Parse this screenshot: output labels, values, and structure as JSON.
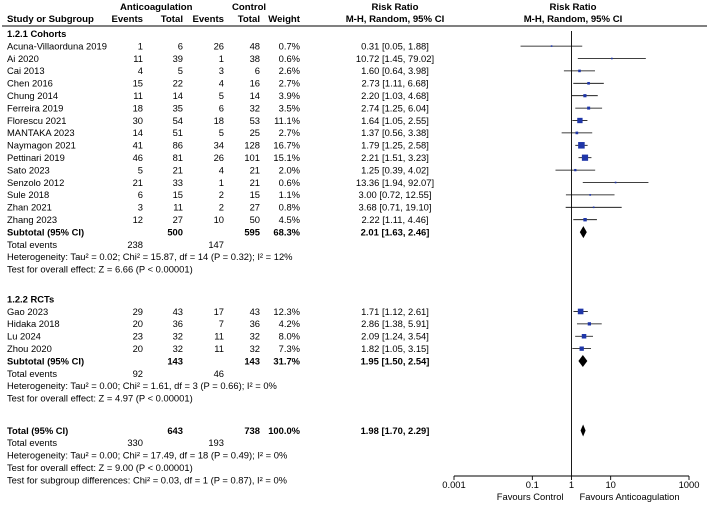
{
  "chart_data": {
    "type": "forest",
    "headers": {
      "study": "Study or Subgroup",
      "group1": "Anticoagulation",
      "group2": "Control",
      "events": "Events",
      "total": "Total",
      "weight": "Weight",
      "rr_title": "Risk Ratio",
      "rr_method": "M-H, Random, 95% CI",
      "plot_title": "Risk Ratio",
      "plot_method": "M-H, Random, 95% CI"
    },
    "axis": {
      "scale": "log",
      "ticks": [
        0.001,
        0.1,
        1,
        10,
        1000
      ],
      "tick_labels": [
        "0.001",
        "0.1",
        "1",
        "10",
        "1000"
      ],
      "range": [
        0.001,
        1000
      ],
      "favours_left": "Favours Control",
      "favours_right": "Favours Anticoagulation"
    },
    "subgroups": [
      {
        "title": "1.2.1 Cohorts",
        "studies": [
          {
            "name": "Acuna-Villaorduna 2019",
            "e1": "1",
            "t1": "6",
            "e2": "26",
            "t2": "48",
            "weight": "0.7%",
            "ci_text": "0.31 [0.05, 1.88]",
            "rr": 0.31,
            "lo": 0.05,
            "hi": 1.88,
            "w": 0.7
          },
          {
            "name": "Ai 2020",
            "e1": "11",
            "t1": "39",
            "e2": "1",
            "t2": "38",
            "weight": "0.6%",
            "ci_text": "10.72 [1.45, 79.02]",
            "rr": 10.72,
            "lo": 1.45,
            "hi": 79.02,
            "w": 0.6
          },
          {
            "name": "Cai 2013",
            "e1": "4",
            "t1": "5",
            "e2": "3",
            "t2": "6",
            "weight": "2.6%",
            "ci_text": "1.60 [0.64, 3.98]",
            "rr": 1.6,
            "lo": 0.64,
            "hi": 3.98,
            "w": 2.6
          },
          {
            "name": "Chen 2016",
            "e1": "15",
            "t1": "22",
            "e2": "4",
            "t2": "16",
            "weight": "2.7%",
            "ci_text": "2.73 [1.11, 6.68]",
            "rr": 2.73,
            "lo": 1.11,
            "hi": 6.68,
            "w": 2.7
          },
          {
            "name": "Chung 2014",
            "e1": "11",
            "t1": "14",
            "e2": "5",
            "t2": "14",
            "weight": "3.9%",
            "ci_text": "2.20 [1.03, 4.68]",
            "rr": 2.2,
            "lo": 1.03,
            "hi": 4.68,
            "w": 3.9
          },
          {
            "name": "Ferreira 2019",
            "e1": "18",
            "t1": "35",
            "e2": "6",
            "t2": "32",
            "weight": "3.5%",
            "ci_text": "2.74 [1.25, 6.04]",
            "rr": 2.74,
            "lo": 1.25,
            "hi": 6.04,
            "w": 3.5
          },
          {
            "name": "Florescu 2021",
            "e1": "30",
            "t1": "54",
            "e2": "18",
            "t2": "53",
            "weight": "11.1%",
            "ci_text": "1.64 [1.05, 2.55]",
            "rr": 1.64,
            "lo": 1.05,
            "hi": 2.55,
            "w": 11.1
          },
          {
            "name": "MANTAKA 2023",
            "e1": "14",
            "t1": "51",
            "e2": "5",
            "t2": "25",
            "weight": "2.7%",
            "ci_text": "1.37 [0.56, 3.38]",
            "rr": 1.37,
            "lo": 0.56,
            "hi": 3.38,
            "w": 2.7
          },
          {
            "name": "Naymagon 2021",
            "e1": "41",
            "t1": "86",
            "e2": "34",
            "t2": "128",
            "weight": "16.7%",
            "ci_text": "1.79 [1.25, 2.58]",
            "rr": 1.79,
            "lo": 1.25,
            "hi": 2.58,
            "w": 16.7
          },
          {
            "name": "Pettinari 2019",
            "e1": "46",
            "t1": "81",
            "e2": "26",
            "t2": "101",
            "weight": "15.1%",
            "ci_text": "2.21 [1.51, 3.23]",
            "rr": 2.21,
            "lo": 1.51,
            "hi": 3.23,
            "w": 15.1
          },
          {
            "name": "Sato 2023",
            "e1": "5",
            "t1": "21",
            "e2": "4",
            "t2": "21",
            "weight": "2.0%",
            "ci_text": "1.25 [0.39, 4.02]",
            "rr": 1.25,
            "lo": 0.39,
            "hi": 4.02,
            "w": 2.0
          },
          {
            "name": "Senzolo 2012",
            "e1": "21",
            "t1": "33",
            "e2": "1",
            "t2": "21",
            "weight": "0.6%",
            "ci_text": "13.36 [1.94, 92.07]",
            "rr": 13.36,
            "lo": 1.94,
            "hi": 92.07,
            "w": 0.6
          },
          {
            "name": "Sule 2018",
            "e1": "6",
            "t1": "15",
            "e2": "2",
            "t2": "15",
            "weight": "1.1%",
            "ci_text": "3.00 [0.72, 12.55]",
            "rr": 3.0,
            "lo": 0.72,
            "hi": 12.55,
            "w": 1.1
          },
          {
            "name": "Zhan 2021",
            "e1": "3",
            "t1": "11",
            "e2": "2",
            "t2": "27",
            "weight": "0.8%",
            "ci_text": "3.68 [0.71, 19.10]",
            "rr": 3.68,
            "lo": 0.71,
            "hi": 19.1,
            "w": 0.8
          },
          {
            "name": "Zhang 2023",
            "e1": "12",
            "t1": "27",
            "e2": "10",
            "t2": "50",
            "weight": "4.5%",
            "ci_text": "2.22 [1.11, 4.46]",
            "rr": 2.22,
            "lo": 1.11,
            "hi": 4.46,
            "w": 4.5
          }
        ],
        "subtotal": {
          "label": "Subtotal (95% CI)",
          "t1": "500",
          "t2": "595",
          "weight": "68.3%",
          "ci_text": "2.01 [1.63, 2.46]",
          "rr": 2.01,
          "lo": 1.63,
          "hi": 2.46
        },
        "total_events": {
          "label": "Total events",
          "e1": "238",
          "e2": "147"
        },
        "heterogeneity": "Heterogeneity: Tau² = 0.02; Chi² = 15.87, df = 14 (P = 0.32); I² = 12%",
        "overall_effect": "Test for overall effect: Z = 6.66 (P < 0.00001)"
      },
      {
        "title": "1.2.2 RCTs",
        "studies": [
          {
            "name": "Gao 2023",
            "e1": "29",
            "t1": "43",
            "e2": "17",
            "t2": "43",
            "weight": "12.3%",
            "ci_text": "1.71 [1.12, 2.61]",
            "rr": 1.71,
            "lo": 1.12,
            "hi": 2.61,
            "w": 12.3
          },
          {
            "name": "Hidaka 2018",
            "e1": "20",
            "t1": "36",
            "e2": "7",
            "t2": "36",
            "weight": "4.2%",
            "ci_text": "2.86 [1.38, 5.91]",
            "rr": 2.86,
            "lo": 1.38,
            "hi": 5.91,
            "w": 4.2
          },
          {
            "name": "Lu 2024",
            "e1": "23",
            "t1": "32",
            "e2": "11",
            "t2": "32",
            "weight": "8.0%",
            "ci_text": "2.09 [1.24, 3.54]",
            "rr": 2.09,
            "lo": 1.24,
            "hi": 3.54,
            "w": 8.0
          },
          {
            "name": "Zhou 2020",
            "e1": "20",
            "t1": "32",
            "e2": "11",
            "t2": "32",
            "weight": "7.3%",
            "ci_text": "1.82 [1.05, 3.15]",
            "rr": 1.82,
            "lo": 1.05,
            "hi": 3.15,
            "w": 7.3
          }
        ],
        "subtotal": {
          "label": "Subtotal (95% CI)",
          "t1": "143",
          "t2": "143",
          "weight": "31.7%",
          "ci_text": "1.95 [1.50, 2.54]",
          "rr": 1.95,
          "lo": 1.5,
          "hi": 2.54
        },
        "total_events": {
          "label": "Total events",
          "e1": "92",
          "e2": "46"
        },
        "heterogeneity": "Heterogeneity: Tau² = 0.00; Chi² = 1.61, df = 3 (P = 0.66); I² = 0%",
        "overall_effect": "Test for overall effect: Z = 4.97 (P < 0.00001)"
      }
    ],
    "total": {
      "label": "Total (95% CI)",
      "t1": "643",
      "t2": "738",
      "weight": "100.0%",
      "ci_text": "1.98 [1.70, 2.29]",
      "rr": 1.98,
      "lo": 1.7,
      "hi": 2.29,
      "events_label": "Total events",
      "e1": "330",
      "e2": "193",
      "heterogeneity": "Heterogeneity: Tau² = 0.00; Chi² = 17.49, df = 18 (P = 0.49); I² = 0%",
      "overall_effect": "Test for overall effect: Z = 9.00 (P < 0.00001)",
      "subgroup_diff": "Test for subgroup differences: Chi² = 0.03, df = 1 (P = 0.87), I² = 0%"
    },
    "colors": {
      "study_marker": "#1f36a8",
      "summary_marker": "#000000",
      "line": "#000000"
    }
  }
}
